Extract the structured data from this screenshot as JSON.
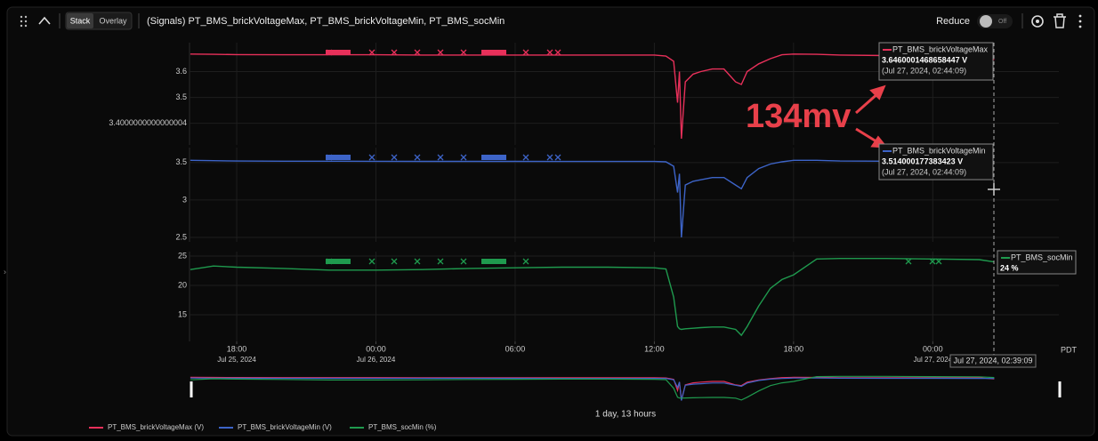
{
  "header": {
    "stack": "Stack",
    "overlay": "Overlay",
    "title": "(Signals) PT_BMS_brickVoltageMax, PT_BMS_brickVoltageMin, PT_BMS_socMin",
    "reduce": "Reduce",
    "toggle": "Off"
  },
  "chart_data": [
    {
      "type": "line",
      "x": [
        "2024-07-25 16:00",
        "2024-07-25 17:00",
        "2024-07-25 18:00",
        "2024-07-25 20:00",
        "2024-07-25 22:00",
        "2024-07-26 00:00",
        "2024-07-26 02:00",
        "2024-07-26 04:00",
        "2024-07-26 06:00",
        "2024-07-26 08:00",
        "2024-07-26 10:00",
        "2024-07-26 12:00",
        "2024-07-26 12:30",
        "2024-07-26 12:50",
        "2024-07-26 13:00",
        "2024-07-26 13:05",
        "2024-07-26 13:10",
        "2024-07-26 13:20",
        "2024-07-26 13:40",
        "2024-07-26 14:00",
        "2024-07-26 14:30",
        "2024-07-26 15:00",
        "2024-07-26 15:30",
        "2024-07-26 15:45",
        "2024-07-26 16:00",
        "2024-07-26 16:30",
        "2024-07-26 17:00",
        "2024-07-26 17:30",
        "2024-07-26 18:00",
        "2024-07-26 19:00",
        "2024-07-26 20:00",
        "2024-07-26 22:00",
        "2024-07-27 00:00",
        "2024-07-27 02:00",
        "2024-07-27 02:39"
      ],
      "series": [
        {
          "name": "PT_BMS_brickVoltageMax (V)",
          "color": "#e8305a",
          "values": [
            3.668,
            3.667,
            3.666,
            3.665,
            3.665,
            3.665,
            3.664,
            3.664,
            3.664,
            3.664,
            3.664,
            3.664,
            3.66,
            3.64,
            3.48,
            3.6,
            3.34,
            3.56,
            3.59,
            3.6,
            3.61,
            3.61,
            3.56,
            3.55,
            3.6,
            3.63,
            3.65,
            3.665,
            3.668,
            3.667,
            3.664,
            3.662,
            3.662,
            3.662,
            3.646
          ]
        }
      ],
      "xlim": [
        "2024-07-25 15:58",
        "2024-07-27 05:26"
      ],
      "ylim": [
        3.316,
        3.712
      ],
      "yticks": [
        3.6,
        3.5,
        3.4000000000000004
      ],
      "grid": true
    },
    {
      "type": "line",
      "x": [
        "2024-07-25 16:00",
        "2024-07-25 17:00",
        "2024-07-25 18:00",
        "2024-07-25 20:00",
        "2024-07-25 22:00",
        "2024-07-26 00:00",
        "2024-07-26 02:00",
        "2024-07-26 04:00",
        "2024-07-26 06:00",
        "2024-07-26 08:00",
        "2024-07-26 10:00",
        "2024-07-26 12:00",
        "2024-07-26 12:30",
        "2024-07-26 12:50",
        "2024-07-26 13:00",
        "2024-07-26 13:05",
        "2024-07-26 13:10",
        "2024-07-26 13:20",
        "2024-07-26 13:40",
        "2024-07-26 14:00",
        "2024-07-26 14:30",
        "2024-07-26 15:00",
        "2024-07-26 15:30",
        "2024-07-26 15:45",
        "2024-07-26 16:00",
        "2024-07-26 16:30",
        "2024-07-26 17:00",
        "2024-07-26 17:30",
        "2024-07-26 18:00",
        "2024-07-26 19:00",
        "2024-07-26 20:00",
        "2024-07-26 22:00",
        "2024-07-27 00:00",
        "2024-07-27 02:00",
        "2024-07-27 02:39"
      ],
      "series": [
        {
          "name": "PT_BMS_brickVoltageMin (V)",
          "color": "#3d64c8",
          "values": [
            3.53,
            3.525,
            3.52,
            3.518,
            3.518,
            3.517,
            3.516,
            3.516,
            3.516,
            3.515,
            3.515,
            3.515,
            3.51,
            3.45,
            3.1,
            3.35,
            2.5,
            3.2,
            3.25,
            3.27,
            3.3,
            3.3,
            3.2,
            3.15,
            3.3,
            3.42,
            3.48,
            3.51,
            3.53,
            3.53,
            3.52,
            3.518,
            3.516,
            3.515,
            3.514
          ]
        }
      ],
      "xlim": [
        "2024-07-25 15:58",
        "2024-07-27 05:26"
      ],
      "ylim": [
        2.44,
        3.7
      ],
      "yticks": [
        3.5,
        3,
        2.5
      ],
      "grid": true
    },
    {
      "type": "line",
      "x": [
        "2024-07-25 16:00",
        "2024-07-25 17:00",
        "2024-07-25 18:00",
        "2024-07-25 20:00",
        "2024-07-25 22:00",
        "2024-07-26 00:00",
        "2024-07-26 02:00",
        "2024-07-26 04:00",
        "2024-07-26 06:00",
        "2024-07-26 08:00",
        "2024-07-26 10:00",
        "2024-07-26 12:00",
        "2024-07-26 12:30",
        "2024-07-26 12:50",
        "2024-07-26 13:00",
        "2024-07-26 13:05",
        "2024-07-26 13:10",
        "2024-07-26 13:20",
        "2024-07-26 13:40",
        "2024-07-26 14:00",
        "2024-07-26 14:30",
        "2024-07-26 15:00",
        "2024-07-26 15:30",
        "2024-07-26 15:45",
        "2024-07-26 16:00",
        "2024-07-26 16:30",
        "2024-07-26 17:00",
        "2024-07-26 17:30",
        "2024-07-26 18:00",
        "2024-07-26 19:00",
        "2024-07-26 20:00",
        "2024-07-26 22:00",
        "2024-07-27 00:00",
        "2024-07-27 02:00",
        "2024-07-27 02:39"
      ],
      "series": [
        {
          "name": "PT_BMS_socMin (%)",
          "color": "#1f9a4e",
          "values": [
            22.7,
            23.3,
            23.1,
            22.9,
            22.6,
            22.6,
            22.7,
            22.9,
            23,
            23.1,
            23.1,
            23,
            22.8,
            18,
            13,
            12.6,
            12.5,
            12.6,
            12.7,
            12.8,
            12.9,
            12.9,
            12.5,
            11.5,
            13,
            16.5,
            19.5,
            21,
            21.8,
            24.5,
            24.6,
            24.6,
            24.5,
            24.4,
            24
          ]
        }
      ],
      "xlim": [
        "2024-07-25 15:58",
        "2024-07-27 05:26"
      ],
      "ylim": [
        10.45,
        25.76
      ],
      "yticks": [
        25,
        20,
        15
      ],
      "grid": true,
      "xticks": [
        {
          "value": "2024-07-25 18:00",
          "label": "18:00"
        },
        {
          "value": "2024-07-26 00:00",
          "label": "00:00"
        },
        {
          "value": "2024-07-26 06:00",
          "label": "06:00"
        },
        {
          "value": "2024-07-26 12:00",
          "label": "12:00"
        },
        {
          "value": "2024-07-26 18:00",
          "label": "18:00"
        },
        {
          "value": "2024-07-27 00:00",
          "label": "00:00"
        }
      ],
      "xtick_dates": [
        {
          "value": "2024-07-25 18:00",
          "label": "Jul 25, 2024"
        },
        {
          "value": "2024-07-26 00:00",
          "label": "Jul 26, 2024"
        },
        {
          "value": "2024-07-27 00:00",
          "label": "Jul 27, 2024"
        }
      ],
      "timezone": "PDT"
    }
  ],
  "tooltips": [
    {
      "name": "PT_BMS_brickVoltageMax",
      "value": "3.6460001468658447  V",
      "time": "(Jul 27, 2024, 02:44:09)"
    },
    {
      "name": "PT_BMS_brickVoltageMin",
      "value": "3.514000177383423  V",
      "time": "(Jul 27, 2024, 02:44:09)"
    },
    {
      "name": "PT_BMS_socMin",
      "value": "24  %"
    }
  ],
  "annotation": "134mv",
  "cursor_label": "Jul 27, 2024, 02:39:09",
  "range_label": "1 day, 13 hours"
}
